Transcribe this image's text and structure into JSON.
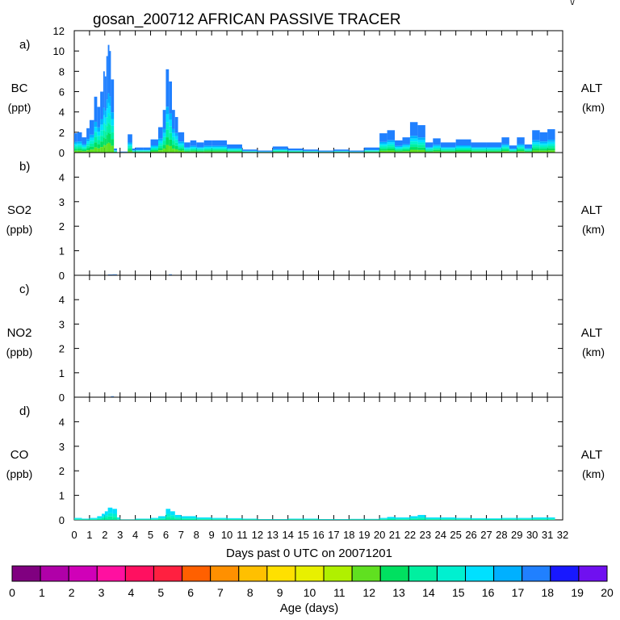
{
  "title": "gosan_200712 AFRICAN PASSIVE TRACER",
  "corner_mark": "\\/",
  "xlabel": "Days past 0 UTC on 20071201",
  "x_ticks": [
    "0",
    "1",
    "2",
    "3",
    "4",
    "5",
    "6",
    "7",
    "8",
    "9",
    "10",
    "11",
    "12",
    "13",
    "14",
    "15",
    "16",
    "17",
    "18",
    "19",
    "20",
    "21",
    "22",
    "23",
    "24",
    "25",
    "26",
    "27",
    "28",
    "29",
    "30",
    "31",
    "32"
  ],
  "colorbar": {
    "label": "Age (days)",
    "ticks": [
      "0",
      "1",
      "2",
      "3",
      "4",
      "5",
      "6",
      "7",
      "8",
      "9",
      "10",
      "11",
      "12",
      "13",
      "14",
      "15",
      "16",
      "17",
      "18",
      "19",
      "20"
    ],
    "colors": [
      "#800080",
      "#b000a8",
      "#d000b8",
      "#ff10a0",
      "#ff1060",
      "#ff2040",
      "#ff6000",
      "#ff9000",
      "#ffc000",
      "#ffe000",
      "#e8f000",
      "#b0f000",
      "#60e020",
      "#00e060",
      "#00f0a0",
      "#00f0d0",
      "#00e0ff",
      "#00b0ff",
      "#2080ff",
      "#1818ff",
      "#7010f0"
    ]
  },
  "chart_data": [
    {
      "type": "area",
      "panel": "a)",
      "ylabel": "BC",
      "units": "(ppt)",
      "right_label": "ALT",
      "right_units": "(km)",
      "ylim": [
        0,
        12
      ],
      "yticks": [
        "0",
        "2",
        "4",
        "6",
        "8",
        "10",
        "12"
      ],
      "xlim": [
        0,
        32
      ],
      "x": [
        0,
        0.2,
        0.5,
        0.8,
        1.0,
        1.3,
        1.5,
        1.7,
        1.9,
        2.0,
        2.1,
        2.2,
        2.3,
        2.4,
        2.6,
        2.8,
        3.0,
        3.5,
        3.8,
        4.0,
        4.5,
        5.0,
        5.5,
        5.8,
        6.0,
        6.2,
        6.4,
        6.6,
        6.8,
        7.2,
        7.6,
        8.0,
        8.5,
        9.0,
        10.0,
        11.0,
        12.0,
        13.0,
        14.0,
        15.0,
        16.0,
        17.0,
        18.0,
        19.0,
        20.0,
        20.5,
        21.0,
        21.5,
        22.0,
        22.5,
        23.0,
        23.5,
        24.0,
        25.0,
        26.0,
        27.0,
        28.0,
        28.5,
        29.0,
        29.5,
        30.0,
        30.5,
        31.0,
        31.5
      ],
      "y": [
        1.9,
        2.0,
        1.5,
        2.4,
        3.2,
        5.5,
        4.5,
        6.0,
        8.0,
        7.5,
        9.5,
        10.6,
        10.0,
        7.2,
        0.4,
        0.0,
        0.1,
        1.8,
        0.4,
        0.5,
        0.5,
        1.3,
        2.5,
        4.2,
        8.2,
        7.0,
        4.2,
        3.5,
        2.0,
        1.0,
        1.2,
        1.0,
        1.2,
        1.2,
        0.8,
        0.3,
        0.2,
        0.6,
        0.4,
        0.3,
        0.2,
        0.3,
        0.2,
        0.5,
        1.9,
        2.2,
        1.2,
        1.5,
        3.0,
        2.7,
        1.0,
        1.4,
        1.0,
        1.3,
        1.0,
        1.0,
        1.5,
        0.7,
        1.5,
        0.8,
        2.2,
        2.0,
        2.3,
        0.0
      ],
      "dominant_age_days": 18,
      "age_profile": [
        18,
        17,
        16,
        15,
        14,
        13,
        12
      ]
    },
    {
      "type": "area",
      "panel": "b)",
      "ylabel": "SO2",
      "units": "(ppb)",
      "right_label": "ALT",
      "right_units": "(km)",
      "ylim": [
        0,
        5
      ],
      "yticks": [
        "0",
        "1",
        "2",
        "3",
        "4"
      ],
      "xlim": [
        0,
        32
      ],
      "x": [
        0,
        2.0,
        2.2,
        2.5,
        2.8,
        6.0,
        6.2,
        6.4,
        32
      ],
      "y": [
        0,
        0,
        0.03,
        0.04,
        0,
        0,
        0.04,
        0,
        0
      ]
    },
    {
      "type": "area",
      "panel": "c)",
      "ylabel": "NO2",
      "units": "(ppb)",
      "right_label": "ALT",
      "right_units": "(km)",
      "ylim": [
        0,
        5
      ],
      "yticks": [
        "0",
        "1",
        "2",
        "3",
        "4"
      ],
      "xlim": [
        0,
        32
      ],
      "x": [
        0,
        2.2,
        2.4,
        2.6,
        32
      ],
      "y": [
        0,
        0,
        0.04,
        0,
        0
      ]
    },
    {
      "type": "area",
      "panel": "d)",
      "ylabel": "CO",
      "units": "(ppb)",
      "right_label": "ALT",
      "right_units": "(km)",
      "ylim": [
        0,
        5
      ],
      "yticks": [
        "0",
        "1",
        "2",
        "3",
        "4"
      ],
      "xlim": [
        0,
        32
      ],
      "x": [
        0,
        0.5,
        1.0,
        1.5,
        1.8,
        2.0,
        2.2,
        2.5,
        2.8,
        3.0,
        4.0,
        5.0,
        5.5,
        6.0,
        6.3,
        6.6,
        7.0,
        8.0,
        9.0,
        10.0,
        11.0,
        12.0,
        14.0,
        16.0,
        18.0,
        20.0,
        20.5,
        21.0,
        22.0,
        22.5,
        23.0,
        24.0,
        25.0,
        26.0,
        27.0,
        28.0,
        29.0,
        30.0,
        31.0,
        31.5
      ],
      "y": [
        0.08,
        0.05,
        0.08,
        0.15,
        0.25,
        0.35,
        0.5,
        0.45,
        0.1,
        0.02,
        0.05,
        0.08,
        0.15,
        0.45,
        0.35,
        0.2,
        0.15,
        0.1,
        0.08,
        0.07,
        0.05,
        0.03,
        0.05,
        0.03,
        0.04,
        0.08,
        0.12,
        0.1,
        0.15,
        0.2,
        0.1,
        0.1,
        0.08,
        0.07,
        0.06,
        0.08,
        0.08,
        0.1,
        0.1,
        0.0
      ],
      "dominant_age_days": 16,
      "age_profile": [
        16,
        15,
        14
      ]
    }
  ]
}
